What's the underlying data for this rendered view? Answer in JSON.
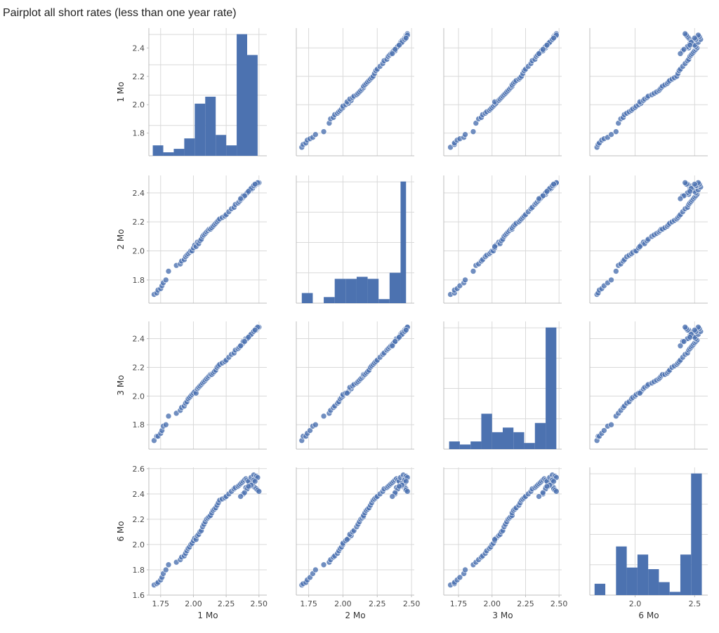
{
  "page": {
    "title": "Pairplot all short rates (less than one year rate)"
  },
  "chart_data": {
    "type": "scatter",
    "subtype": "pairplot",
    "title": "Pairplot all short rates (less than one year rate)",
    "variables": [
      "1 Mo",
      "2 Mo",
      "3 Mo",
      "6 Mo"
    ],
    "grid": true,
    "colors": {
      "marker": "#4c72b0",
      "bar": "#4c72b0",
      "grid": "#d9d9d9"
    },
    "axes": {
      "1 Mo": {
        "range": [
          1.66,
          2.56
        ],
        "ticks": [
          1.75,
          2.0,
          2.25,
          2.5
        ],
        "tick_labels": [
          "1.75",
          "2.00",
          "2.25",
          "2.50"
        ],
        "row_ticks": [
          1.8,
          2.0,
          2.2,
          2.4
        ],
        "row_tick_labels": [
          "1.8",
          "2.0",
          "2.2",
          "2.4"
        ],
        "row_range": [
          1.64,
          2.54
        ]
      },
      "2 Mo": {
        "range": [
          1.66,
          2.52
        ],
        "ticks": [
          1.75,
          2.0,
          2.25,
          2.5
        ],
        "tick_labels": [
          "1.75",
          "2.00",
          "2.25",
          "2.50"
        ],
        "row_ticks": [
          1.8,
          2.0,
          2.2,
          2.4
        ],
        "row_tick_labels": [
          "1.8",
          "2.0",
          "2.2",
          "2.4"
        ],
        "row_range": [
          1.64,
          2.52
        ]
      },
      "3 Mo": {
        "range": [
          1.64,
          2.52
        ],
        "ticks": [
          1.75,
          2.0,
          2.25,
          2.5
        ],
        "tick_labels": [
          "1.75",
          "2.00",
          "2.25",
          "2.50"
        ],
        "row_ticks": [
          1.8,
          2.0,
          2.2,
          2.4
        ],
        "row_tick_labels": [
          "1.8",
          "2.0",
          "2.2",
          "2.4"
        ],
        "row_range": [
          1.63,
          2.52
        ]
      },
      "6 Mo": {
        "range": [
          1.62,
          2.61
        ],
        "ticks": [
          2.0,
          2.5
        ],
        "tick_labels": [
          "2.0",
          "2.5"
        ],
        "row_ticks": [
          1.6,
          1.8,
          2.0,
          2.2,
          2.4,
          2.6
        ],
        "row_tick_labels": [
          "1.6",
          "1.8",
          "2.0",
          "2.2",
          "2.4",
          "2.6"
        ],
        "row_range": [
          1.6,
          2.61
        ]
      }
    },
    "histograms": [
      {
        "variable": "1 Mo",
        "bin_edges": [
          1.69,
          1.77,
          1.85,
          1.93,
          2.01,
          2.09,
          2.17,
          2.25,
          2.33,
          2.41,
          2.49
        ],
        "counts": [
          3,
          1,
          2,
          5,
          15,
          17,
          6,
          3,
          35,
          29
        ]
      },
      {
        "variable": "2 Mo",
        "bin_edges": [
          1.7,
          1.78,
          1.86,
          1.94,
          2.02,
          2.1,
          2.18,
          2.26,
          2.34,
          2.42,
          2.46
        ],
        "counts": [
          5,
          0,
          3,
          12,
          12,
          13,
          12,
          2,
          15,
          60
        ]
      },
      {
        "variable": "3 Mo",
        "bin_edges": [
          1.68,
          1.76,
          1.84,
          1.92,
          2.0,
          2.08,
          2.16,
          2.24,
          2.32,
          2.4,
          2.48
        ],
        "counts": [
          5,
          3,
          5,
          23,
          11,
          14,
          11,
          4,
          17,
          79
        ]
      },
      {
        "variable": "6 Mo",
        "bin_edges": [
          1.66,
          1.75,
          1.84,
          1.93,
          2.02,
          2.11,
          2.2,
          2.29,
          2.38,
          2.47,
          2.56
        ],
        "counts": [
          7,
          0,
          30,
          17,
          25,
          16,
          8,
          2,
          25,
          75
        ]
      }
    ],
    "points": {
      "1 Mo": [
        1.7,
        1.72,
        1.73,
        1.75,
        1.76,
        1.77,
        1.79,
        1.81,
        1.87,
        1.9,
        1.91,
        1.93,
        1.94,
        1.95,
        1.96,
        1.97,
        1.98,
        1.99,
        2.0,
        2.01,
        2.02,
        2.03,
        2.04,
        2.05,
        2.06,
        2.07,
        2.08,
        2.09,
        2.1,
        2.11,
        2.12,
        2.13,
        2.14,
        2.15,
        2.16,
        2.17,
        2.18,
        2.19,
        2.2,
        2.22,
        2.24,
        2.25,
        2.27,
        2.29,
        2.31,
        2.32,
        2.34,
        2.35,
        2.36,
        2.37,
        2.38,
        2.39,
        2.4,
        2.41,
        2.42,
        2.43,
        2.44,
        2.45,
        2.46,
        2.47,
        2.48,
        2.49,
        2.5,
        2.38,
        2.4,
        2.42,
        2.44,
        2.46,
        2.45,
        2.43,
        2.41,
        2.47,
        2.48,
        2.39,
        2.44,
        2.46,
        2.49,
        2.42,
        2.36,
        2.47
      ],
      "2 Mo": [
        1.7,
        1.71,
        1.73,
        1.74,
        1.76,
        1.78,
        1.8,
        1.86,
        1.9,
        1.91,
        1.93,
        1.94,
        1.96,
        1.97,
        1.98,
        1.99,
        2.0,
        2.0,
        2.02,
        2.04,
        2.03,
        2.06,
        2.05,
        2.07,
        2.08,
        2.1,
        2.11,
        2.12,
        2.13,
        2.14,
        2.15,
        2.15,
        2.16,
        2.17,
        2.18,
        2.19,
        2.2,
        2.21,
        2.22,
        2.23,
        2.24,
        2.25,
        2.27,
        2.29,
        2.3,
        2.32,
        2.33,
        2.34,
        2.35,
        2.36,
        2.37,
        2.38,
        2.39,
        2.4,
        2.41,
        2.42,
        2.43,
        2.44,
        2.45,
        2.45,
        2.46,
        2.46,
        2.47,
        2.38,
        2.39,
        2.41,
        2.42,
        2.44,
        2.43,
        2.42,
        2.4,
        2.45,
        2.46,
        2.38,
        2.43,
        2.45,
        2.47,
        2.41,
        2.36,
        2.46
      ],
      "3 Mo": [
        1.69,
        1.72,
        1.72,
        1.74,
        1.76,
        1.79,
        1.8,
        1.86,
        1.88,
        1.9,
        1.92,
        1.93,
        1.95,
        1.96,
        1.98,
        1.99,
        2.0,
        2.01,
        2.02,
        2.03,
        2.02,
        2.05,
        2.06,
        2.07,
        2.08,
        2.09,
        2.1,
        2.11,
        2.12,
        2.13,
        2.14,
        2.15,
        2.15,
        2.16,
        2.17,
        2.18,
        2.2,
        2.21,
        2.22,
        2.23,
        2.24,
        2.25,
        2.27,
        2.29,
        2.3,
        2.32,
        2.33,
        2.34,
        2.35,
        2.36,
        2.37,
        2.38,
        2.39,
        2.4,
        2.41,
        2.42,
        2.43,
        2.44,
        2.45,
        2.46,
        2.46,
        2.47,
        2.48,
        2.38,
        2.4,
        2.41,
        2.43,
        2.45,
        2.44,
        2.42,
        2.4,
        2.46,
        2.47,
        2.38,
        2.43,
        2.45,
        2.48,
        2.41,
        2.35,
        2.46
      ],
      "6 Mo": [
        1.68,
        1.69,
        1.7,
        1.72,
        1.74,
        1.77,
        1.8,
        1.84,
        1.86,
        1.88,
        1.9,
        1.91,
        1.93,
        1.95,
        1.97,
        1.98,
        2.0,
        2.01,
        2.03,
        2.05,
        2.04,
        2.07,
        2.08,
        2.1,
        2.11,
        2.14,
        2.16,
        2.18,
        2.2,
        2.21,
        2.22,
        2.23,
        2.25,
        2.27,
        2.28,
        2.29,
        2.31,
        2.33,
        2.35,
        2.36,
        2.37,
        2.38,
        2.4,
        2.42,
        2.44,
        2.45,
        2.46,
        2.47,
        2.48,
        2.49,
        2.5,
        2.51,
        2.52,
        2.51,
        2.5,
        2.49,
        2.48,
        2.47,
        2.46,
        2.45,
        2.44,
        2.43,
        2.42,
        2.4,
        2.45,
        2.5,
        2.53,
        2.55,
        2.48,
        2.46,
        2.44,
        2.52,
        2.54,
        2.41,
        2.47,
        2.51,
        2.53,
        2.46,
        2.38,
        2.5
      ]
    }
  }
}
